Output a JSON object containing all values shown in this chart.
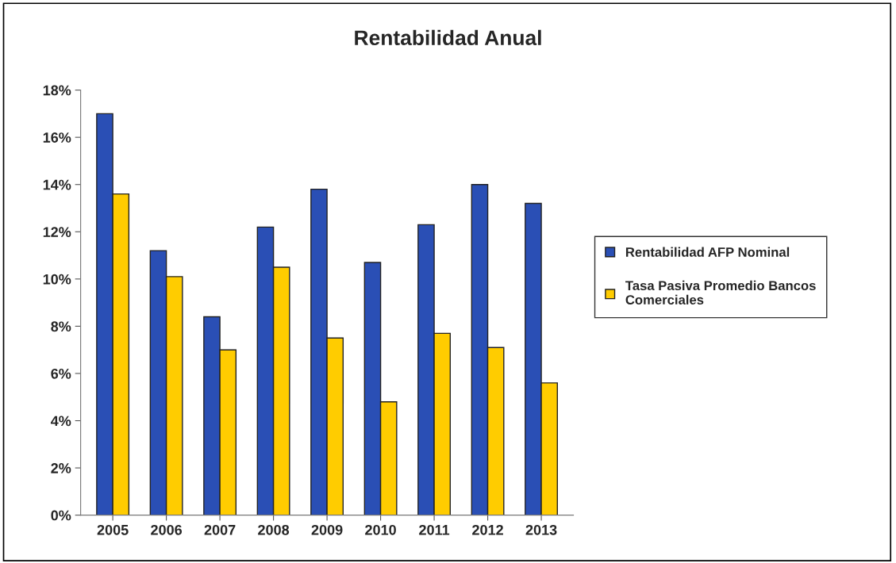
{
  "chart_data": {
    "type": "bar",
    "title": "Rentabilidad Anual",
    "categories": [
      "2005",
      "2006",
      "2007",
      "2008",
      "2009",
      "2010",
      "2011",
      "2012",
      "2013"
    ],
    "series": [
      {
        "name": "Rentabilidad AFP Nominal",
        "color": "#2a4fb5",
        "values": [
          17.0,
          11.2,
          8.4,
          12.2,
          13.8,
          10.7,
          12.3,
          14.0,
          13.2
        ]
      },
      {
        "name": "Tasa Pasiva Promedio Bancos Comerciales",
        "color": "#ffcc00",
        "values": [
          13.6,
          10.1,
          7.0,
          10.5,
          7.5,
          4.8,
          7.7,
          7.1,
          5.6
        ]
      }
    ],
    "ylim": [
      0,
      18
    ],
    "yticks": [
      {
        "value": 0,
        "label": "0%"
      },
      {
        "value": 2,
        "label": "2%"
      },
      {
        "value": 4,
        "label": "4%"
      },
      {
        "value": 6,
        "label": "6%"
      },
      {
        "value": 8,
        "label": "8%"
      },
      {
        "value": 10,
        "label": "10%"
      },
      {
        "value": 12,
        "label": "12%"
      },
      {
        "value": 14,
        "label": "14%"
      },
      {
        "value": 16,
        "label": "16%"
      },
      {
        "value": 18,
        "label": "18%"
      }
    ],
    "grid": false,
    "legend": "right"
  }
}
